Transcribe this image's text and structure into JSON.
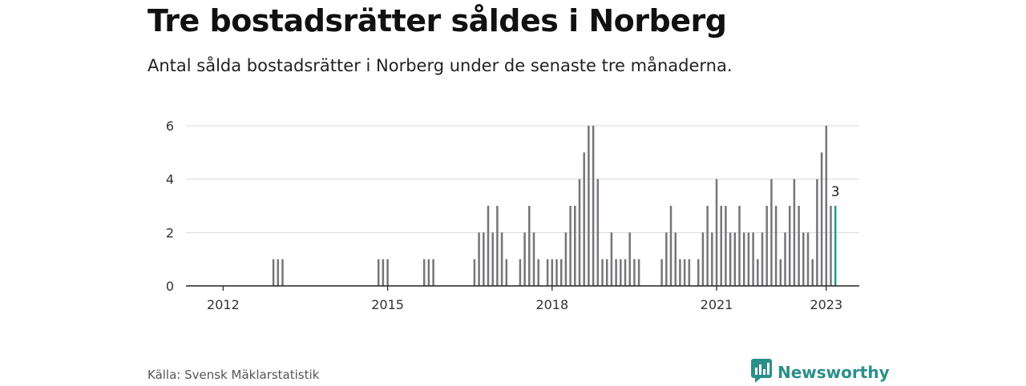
{
  "header": {
    "title": "Tre bostadsrätter såldes i Norberg",
    "subtitle": "Antal sålda bostadsrätter i Norberg under de senaste tre månaderna."
  },
  "footer": {
    "source": "Källa: Svensk Mäklarstatistik",
    "brand": "Newsworthy"
  },
  "colors": {
    "bar": "#76767a",
    "highlight": "#1f9e93",
    "grid": "#d9d9d9",
    "axis": "#222222",
    "brand": "#2a8f8a"
  },
  "chart_data": {
    "type": "bar",
    "x_start": "2011-01",
    "x_end": "2023-01",
    "xticks": [
      {
        "label": "2012",
        "date": "2012-01"
      },
      {
        "label": "2015",
        "date": "2015-01"
      },
      {
        "label": "2018",
        "date": "2018-01"
      },
      {
        "label": "2021",
        "date": "2021-01"
      },
      {
        "label": "2023",
        "date": "2023-01"
      }
    ],
    "ylim": [
      0,
      6
    ],
    "yticks": [
      0,
      2,
      4,
      6
    ],
    "grid": true,
    "highlight_label": "3",
    "data": [
      {
        "x": "2012-12",
        "y": 1
      },
      {
        "x": "2013-01",
        "y": 1
      },
      {
        "x": "2013-02",
        "y": 1
      },
      {
        "x": "2014-11",
        "y": 1
      },
      {
        "x": "2014-12",
        "y": 1
      },
      {
        "x": "2015-01",
        "y": 1
      },
      {
        "x": "2015-09",
        "y": 1
      },
      {
        "x": "2015-10",
        "y": 1
      },
      {
        "x": "2015-11",
        "y": 1
      },
      {
        "x": "2016-08",
        "y": 1
      },
      {
        "x": "2016-09",
        "y": 2
      },
      {
        "x": "2016-10",
        "y": 2
      },
      {
        "x": "2016-11",
        "y": 3
      },
      {
        "x": "2016-12",
        "y": 2
      },
      {
        "x": "2017-01",
        "y": 3
      },
      {
        "x": "2017-02",
        "y": 2
      },
      {
        "x": "2017-03",
        "y": 1
      },
      {
        "x": "2017-06",
        "y": 1
      },
      {
        "x": "2017-07",
        "y": 2
      },
      {
        "x": "2017-08",
        "y": 3
      },
      {
        "x": "2017-09",
        "y": 2
      },
      {
        "x": "2017-10",
        "y": 1
      },
      {
        "x": "2017-12",
        "y": 1
      },
      {
        "x": "2018-01",
        "y": 1
      },
      {
        "x": "2018-02",
        "y": 1
      },
      {
        "x": "2018-03",
        "y": 1
      },
      {
        "x": "2018-04",
        "y": 2
      },
      {
        "x": "2018-05",
        "y": 3
      },
      {
        "x": "2018-06",
        "y": 3
      },
      {
        "x": "2018-07",
        "y": 4
      },
      {
        "x": "2018-08",
        "y": 5
      },
      {
        "x": "2018-09",
        "y": 6
      },
      {
        "x": "2018-10",
        "y": 6
      },
      {
        "x": "2018-11",
        "y": 4
      },
      {
        "x": "2018-12",
        "y": 1
      },
      {
        "x": "2019-01",
        "y": 1
      },
      {
        "x": "2019-02",
        "y": 2
      },
      {
        "x": "2019-03",
        "y": 1
      },
      {
        "x": "2019-04",
        "y": 1
      },
      {
        "x": "2019-05",
        "y": 1
      },
      {
        "x": "2019-06",
        "y": 2
      },
      {
        "x": "2019-07",
        "y": 1
      },
      {
        "x": "2019-08",
        "y": 1
      },
      {
        "x": "2020-01",
        "y": 1
      },
      {
        "x": "2020-02",
        "y": 2
      },
      {
        "x": "2020-03",
        "y": 3
      },
      {
        "x": "2020-04",
        "y": 2
      },
      {
        "x": "2020-05",
        "y": 1
      },
      {
        "x": "2020-06",
        "y": 1
      },
      {
        "x": "2020-07",
        "y": 1
      },
      {
        "x": "2020-09",
        "y": 1
      },
      {
        "x": "2020-10",
        "y": 2
      },
      {
        "x": "2020-11",
        "y": 3
      },
      {
        "x": "2020-12",
        "y": 2
      },
      {
        "x": "2021-01",
        "y": 4
      },
      {
        "x": "2021-02",
        "y": 3
      },
      {
        "x": "2021-03",
        "y": 3
      },
      {
        "x": "2021-04",
        "y": 2
      },
      {
        "x": "2021-05",
        "y": 2
      },
      {
        "x": "2021-06",
        "y": 3
      },
      {
        "x": "2021-07",
        "y": 2
      },
      {
        "x": "2021-08",
        "y": 2
      },
      {
        "x": "2021-09",
        "y": 2
      },
      {
        "x": "2021-10",
        "y": 1
      },
      {
        "x": "2021-11",
        "y": 2
      },
      {
        "x": "2021-12",
        "y": 3
      },
      {
        "x": "2022-01",
        "y": 4
      },
      {
        "x": "2022-02",
        "y": 3
      },
      {
        "x": "2022-03",
        "y": 1
      },
      {
        "x": "2022-04",
        "y": 2
      },
      {
        "x": "2022-05",
        "y": 3
      },
      {
        "x": "2022-06",
        "y": 4
      },
      {
        "x": "2022-07",
        "y": 3
      },
      {
        "x": "2022-08",
        "y": 2
      },
      {
        "x": "2022-09",
        "y": 2
      },
      {
        "x": "2022-10",
        "y": 1
      },
      {
        "x": "2022-11",
        "y": 4
      },
      {
        "x": "2022-12",
        "y": 5
      },
      {
        "x": "2023-01",
        "y": 6
      },
      {
        "x": "2023-02",
        "y": 3
      },
      {
        "x": "2023-03",
        "y": 3
      }
    ]
  }
}
